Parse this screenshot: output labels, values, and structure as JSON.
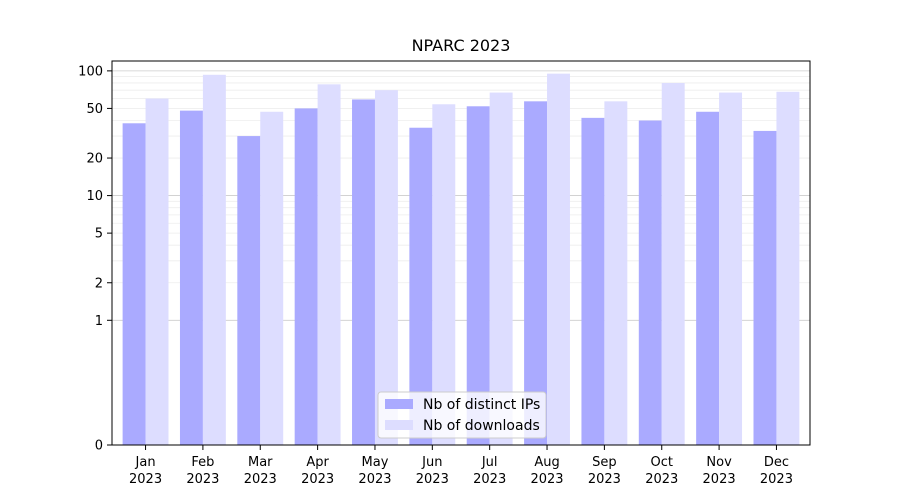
{
  "chart_data": {
    "type": "bar",
    "title": "NPARC 2023",
    "xlabel": "",
    "ylabel": "",
    "y_scale": "symlog",
    "ylim": [
      0,
      120
    ],
    "yticks": [
      0,
      1,
      2,
      5,
      10,
      20,
      50,
      100
    ],
    "ytick_labels": [
      "0",
      "1",
      "2",
      "5",
      "10",
      "20",
      "50",
      "100"
    ],
    "categories": [
      {
        "month": "Jan",
        "year": "2023"
      },
      {
        "month": "Feb",
        "year": "2023"
      },
      {
        "month": "Mar",
        "year": "2023"
      },
      {
        "month": "Apr",
        "year": "2023"
      },
      {
        "month": "May",
        "year": "2023"
      },
      {
        "month": "Jun",
        "year": "2023"
      },
      {
        "month": "Jul",
        "year": "2023"
      },
      {
        "month": "Aug",
        "year": "2023"
      },
      {
        "month": "Sep",
        "year": "2023"
      },
      {
        "month": "Oct",
        "year": "2023"
      },
      {
        "month": "Nov",
        "year": "2023"
      },
      {
        "month": "Dec",
        "year": "2023"
      }
    ],
    "series": [
      {
        "name": "Nb of distinct IPs",
        "color": "#aaaaff",
        "values": [
          38,
          48,
          30,
          50,
          59,
          35,
          52,
          57,
          42,
          40,
          47,
          33
        ]
      },
      {
        "name": "Nb of downloads",
        "color": "#ddddff",
        "values": [
          60,
          93,
          47,
          78,
          70,
          54,
          67,
          95,
          57,
          80,
          67,
          68
        ]
      }
    ],
    "grid": true,
    "legend_position": "bottom-center"
  }
}
